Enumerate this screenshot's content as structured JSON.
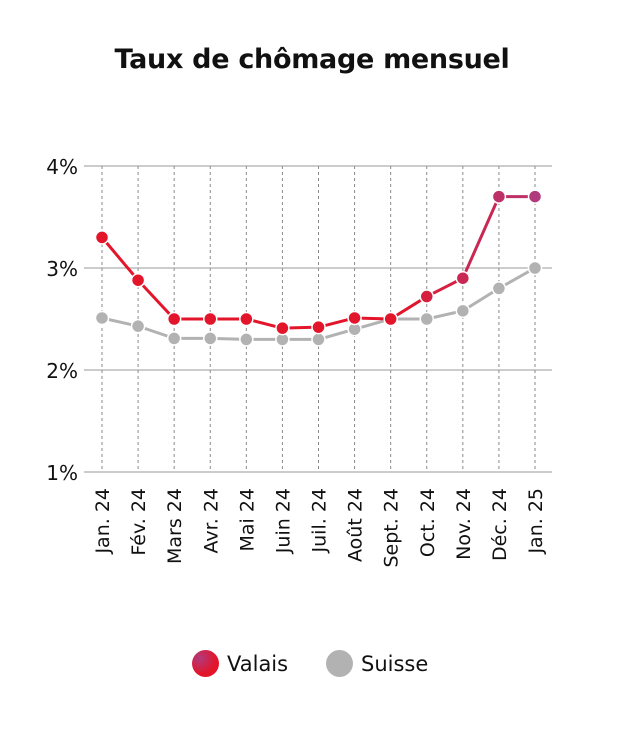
{
  "title": "Taux de chômage mensuel",
  "legend": {
    "valais": "Valais",
    "suisse": "Suisse"
  },
  "colors": {
    "valais_start": "#e3152b",
    "valais_end": "#b03a7c",
    "suisse": "#b2b2b2",
    "grid": "#9a9a9a"
  },
  "chart_data": {
    "type": "line",
    "title": "Taux de chômage mensuel",
    "categories": [
      "Jan. 24",
      "Fév. 24",
      "Mars 24",
      "Avr. 24",
      "Mai 24",
      "Juin 24",
      "Juil. 24",
      "Août 24",
      "Sept. 24",
      "Oct. 24",
      "Nov. 24",
      "Déc. 24",
      "Jan. 25"
    ],
    "y_ticks": [
      "1%",
      "2%",
      "3%",
      "4%"
    ],
    "ylim": [
      1,
      4
    ],
    "grid": true,
    "legend_position": "bottom",
    "series": [
      {
        "name": "Valais",
        "values": [
          3.3,
          2.88,
          2.5,
          2.5,
          2.5,
          2.41,
          2.42,
          2.51,
          2.5,
          2.72,
          2.9,
          3.7,
          3.7
        ]
      },
      {
        "name": "Suisse",
        "values": [
          2.51,
          2.43,
          2.31,
          2.31,
          2.3,
          2.3,
          2.3,
          2.4,
          2.5,
          2.5,
          2.58,
          2.8,
          3.0
        ]
      }
    ]
  }
}
